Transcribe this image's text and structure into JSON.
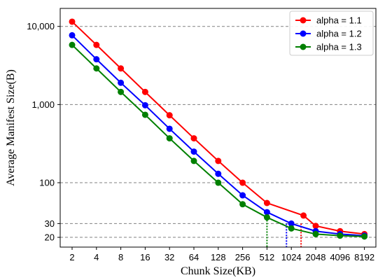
{
  "chart_data": {
    "type": "line",
    "xlabel": "Chunk Size(KB)",
    "ylabel": "Average Manifest Size(B)",
    "yscale": "log",
    "ylim": [
      15,
      17000
    ],
    "categories": [
      "2",
      "4",
      "8",
      "16",
      "32",
      "64",
      "128",
      "256",
      "512",
      "1024",
      "2048",
      "4096",
      "8192"
    ],
    "y_ticks": [
      20,
      30,
      100,
      1000,
      10000
    ],
    "y_tick_labels": [
      "20",
      "30",
      "100",
      "1,000",
      "10,000"
    ],
    "grid": "horizontal-dashed",
    "legend_position": "top-right",
    "series": [
      {
        "name": "alpha = 1.1",
        "color": "#ff0000",
        "values": [
          11500,
          5800,
          2900,
          1450,
          730,
          370,
          190,
          100,
          55,
          38,
          28,
          24,
          22
        ],
        "marker_at": [
          0,
          1,
          2,
          3,
          4,
          5,
          6,
          7,
          8,
          9.5,
          10,
          11,
          12
        ]
      },
      {
        "name": "alpha = 1.2",
        "color": "#0000ff",
        "values": [
          7700,
          3800,
          1900,
          980,
          490,
          250,
          130,
          69,
          42,
          30,
          24,
          22,
          21
        ],
        "marker_at": [
          0,
          1,
          2,
          3,
          4,
          5,
          6,
          7,
          8,
          9,
          10,
          11,
          12
        ]
      },
      {
        "name": "alpha = 1.3",
        "color": "#008000",
        "values": [
          5800,
          2900,
          1450,
          740,
          370,
          190,
          100,
          53,
          36,
          26,
          22,
          21,
          20.5
        ],
        "marker_at": [
          0,
          1,
          2,
          3,
          4,
          5,
          6,
          7,
          8,
          9,
          10,
          11,
          12
        ]
      }
    ],
    "markers": [
      {
        "series": "alpha = 1.3",
        "at": 8,
        "value": 36
      },
      {
        "series": "alpha = 1.2",
        "at": 8.8,
        "value": 30
      },
      {
        "series": "alpha = 1.1",
        "at": 9.4,
        "value": 30
      }
    ]
  }
}
